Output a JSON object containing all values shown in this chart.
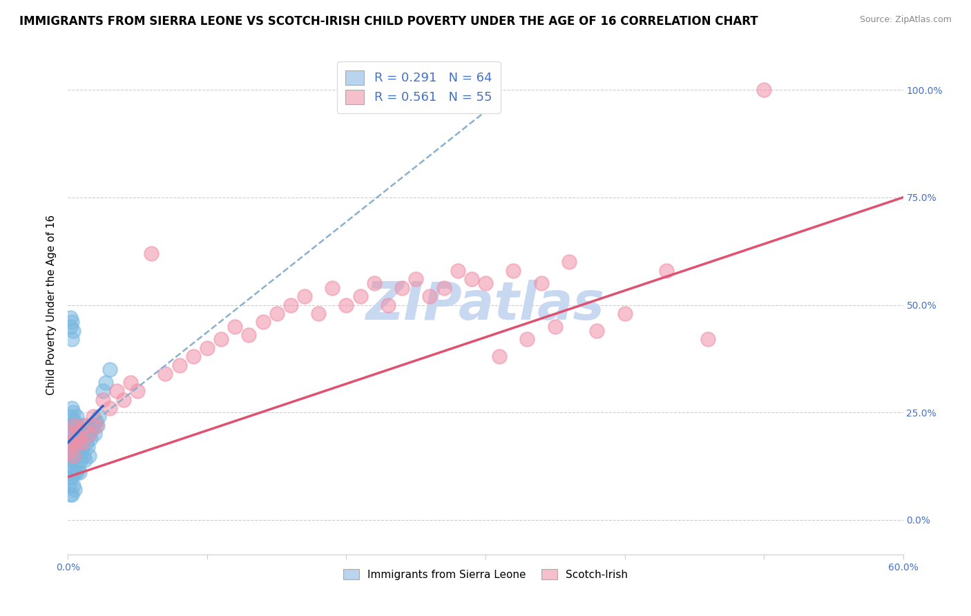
{
  "title": "IMMIGRANTS FROM SIERRA LEONE VS SCOTCH-IRISH CHILD POVERTY UNDER THE AGE OF 16 CORRELATION CHART",
  "source": "Source: ZipAtlas.com",
  "ytick_labels": [
    "0.0%",
    "25.0%",
    "50.0%",
    "75.0%",
    "100.0%"
  ],
  "ytick_values": [
    0.0,
    0.25,
    0.5,
    0.75,
    1.0
  ],
  "xmin": 0.0,
  "xmax": 0.6,
  "ymin": -0.08,
  "ymax": 1.08,
  "legend_r1": "R = 0.291",
  "legend_n1": "N = 64",
  "legend_r2": "R = 0.561",
  "legend_n2": "N = 55",
  "legend_color1": "#b8d4ee",
  "legend_color2": "#f5c0cb",
  "scatter_color1": "#7ab8e0",
  "scatter_color2": "#f090a8",
  "trendline_color1": "#8ab0d0",
  "trendline_color2": "#e05070",
  "blue_line_color": "#3060c0",
  "watermark_text": "ZIPatlas",
  "watermark_color": "#c8d8f0",
  "title_fontsize": 12,
  "axis_label_fontsize": 11,
  "tick_fontsize": 10,
  "ylabel": "Child Poverty Under the Age of 16",
  "blue_scatter_x": [
    0.001,
    0.001,
    0.001,
    0.001,
    0.001,
    0.002,
    0.002,
    0.002,
    0.002,
    0.002,
    0.002,
    0.003,
    0.003,
    0.003,
    0.003,
    0.003,
    0.003,
    0.004,
    0.004,
    0.004,
    0.004,
    0.004,
    0.005,
    0.005,
    0.005,
    0.005,
    0.005,
    0.006,
    0.006,
    0.006,
    0.006,
    0.007,
    0.007,
    0.007,
    0.008,
    0.008,
    0.008,
    0.009,
    0.009,
    0.01,
    0.01,
    0.011,
    0.011,
    0.012,
    0.012,
    0.013,
    0.014,
    0.015,
    0.015,
    0.016,
    0.017,
    0.018,
    0.019,
    0.02,
    0.021,
    0.022,
    0.025,
    0.027,
    0.03,
    0.003,
    0.004,
    0.003,
    0.002,
    0.002
  ],
  "blue_scatter_y": [
    0.22,
    0.18,
    0.15,
    0.12,
    0.08,
    0.24,
    0.21,
    0.18,
    0.14,
    0.1,
    0.06,
    0.26,
    0.22,
    0.18,
    0.14,
    0.1,
    0.06,
    0.25,
    0.2,
    0.16,
    0.12,
    0.08,
    0.23,
    0.19,
    0.15,
    0.11,
    0.07,
    0.24,
    0.2,
    0.16,
    0.11,
    0.22,
    0.17,
    0.12,
    0.2,
    0.16,
    0.11,
    0.19,
    0.14,
    0.22,
    0.17,
    0.2,
    0.15,
    0.19,
    0.14,
    0.18,
    0.17,
    0.2,
    0.15,
    0.19,
    0.21,
    0.22,
    0.2,
    0.23,
    0.22,
    0.24,
    0.3,
    0.32,
    0.35,
    0.42,
    0.44,
    0.46,
    0.45,
    0.47
  ],
  "pink_scatter_x": [
    0.001,
    0.002,
    0.003,
    0.004,
    0.005,
    0.006,
    0.007,
    0.008,
    0.01,
    0.012,
    0.015,
    0.018,
    0.02,
    0.025,
    0.03,
    0.035,
    0.04,
    0.045,
    0.05,
    0.06,
    0.07,
    0.08,
    0.09,
    0.1,
    0.11,
    0.12,
    0.13,
    0.14,
    0.15,
    0.16,
    0.17,
    0.18,
    0.19,
    0.2,
    0.21,
    0.22,
    0.23,
    0.24,
    0.25,
    0.26,
    0.27,
    0.28,
    0.29,
    0.3,
    0.31,
    0.32,
    0.33,
    0.34,
    0.35,
    0.36,
    0.38,
    0.4,
    0.43,
    0.46,
    0.5
  ],
  "pink_scatter_y": [
    0.16,
    0.18,
    0.2,
    0.15,
    0.22,
    0.18,
    0.19,
    0.21,
    0.18,
    0.22,
    0.2,
    0.24,
    0.22,
    0.28,
    0.26,
    0.3,
    0.28,
    0.32,
    0.3,
    0.62,
    0.34,
    0.36,
    0.38,
    0.4,
    0.42,
    0.45,
    0.43,
    0.46,
    0.48,
    0.5,
    0.52,
    0.48,
    0.54,
    0.5,
    0.52,
    0.55,
    0.5,
    0.54,
    0.56,
    0.52,
    0.54,
    0.58,
    0.56,
    0.55,
    0.38,
    0.58,
    0.42,
    0.55,
    0.45,
    0.6,
    0.44,
    0.48,
    0.58,
    0.42,
    1.0
  ],
  "pink_trendline_x0": 0.0,
  "pink_trendline_y0": 0.1,
  "pink_trendline_x1": 0.6,
  "pink_trendline_y1": 0.75,
  "blue_trendline_x0": 0.0,
  "blue_trendline_y0": 0.18,
  "blue_trendline_x1": 0.3,
  "blue_trendline_y1": 0.95,
  "blue_line_x0": 0.0,
  "blue_line_y0": 0.18,
  "blue_line_x1": 0.025,
  "blue_line_y1": 0.265
}
